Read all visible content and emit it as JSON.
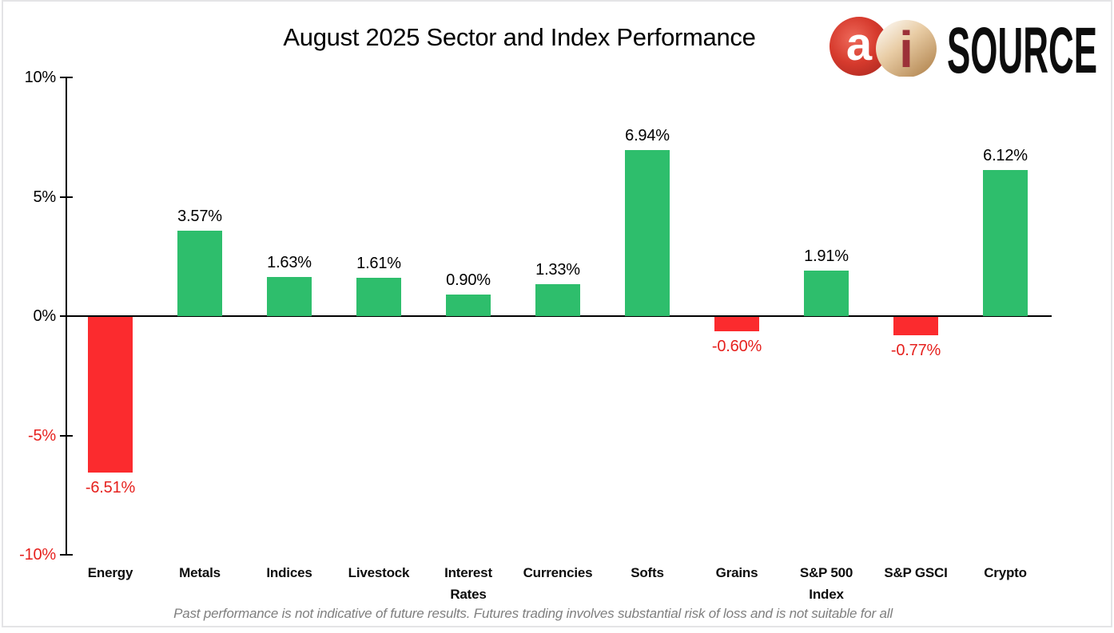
{
  "chart_data": {
    "type": "bar",
    "title": "August 2025 Sector and Index Performance",
    "categories": [
      "Energy",
      "Metals",
      "Indices",
      "Livestock",
      "Interest Rates",
      "Currencies",
      "Softs",
      "Grains",
      "S&P 500 Index",
      "S&P GSCI",
      "Crypto"
    ],
    "category_label_lines": [
      [
        "Energy"
      ],
      [
        "Metals"
      ],
      [
        "Indices"
      ],
      [
        "Livestock"
      ],
      [
        "Interest",
        "Rates"
      ],
      [
        "Currencies"
      ],
      [
        "Softs"
      ],
      [
        "Grains"
      ],
      [
        "S&P 500",
        "Index"
      ],
      [
        "S&P GSCI"
      ],
      [
        "Crypto"
      ]
    ],
    "values": [
      -6.51,
      3.57,
      1.63,
      1.61,
      0.9,
      1.33,
      6.94,
      -0.6,
      1.91,
      -0.77,
      6.12
    ],
    "data_labels": [
      "-6.51%",
      "3.57%",
      "1.63%",
      "1.61%",
      "0.90%",
      "1.33%",
      "6.94%",
      "-0.60%",
      "1.91%",
      "-0.77%",
      "6.12%"
    ],
    "ylim": [
      -10,
      10
    ],
    "y_ticks": [
      {
        "label": "10%",
        "value": 10,
        "color": "#000000"
      },
      {
        "label": "5%",
        "value": 5,
        "color": "#000000"
      },
      {
        "label": "0%",
        "value": 0,
        "color": "#000000"
      },
      {
        "label": "-5%",
        "value": -5,
        "color": "#e6211e"
      },
      {
        "label": "-10%",
        "value": -10,
        "color": "#e6211e"
      }
    ],
    "grid": false,
    "legend": false,
    "colors": {
      "positive_bar": "#2ebe6c",
      "negative_bar": "#fb2b2e",
      "positive_label": "#000000",
      "negative_label": "#e6211e"
    }
  },
  "logo": {
    "mark_a": "a",
    "mark_i": "i",
    "wordmark": "SOURCE",
    "colors": {
      "mark_red": "#c9332a",
      "mark_gold": "#c2965f",
      "wordmark_black": "#0d0d0d"
    }
  },
  "footer": {
    "disclaimer": "Past performance is not indicative of future results. Futures trading involves substantial risk of loss and is not suitable for all"
  }
}
